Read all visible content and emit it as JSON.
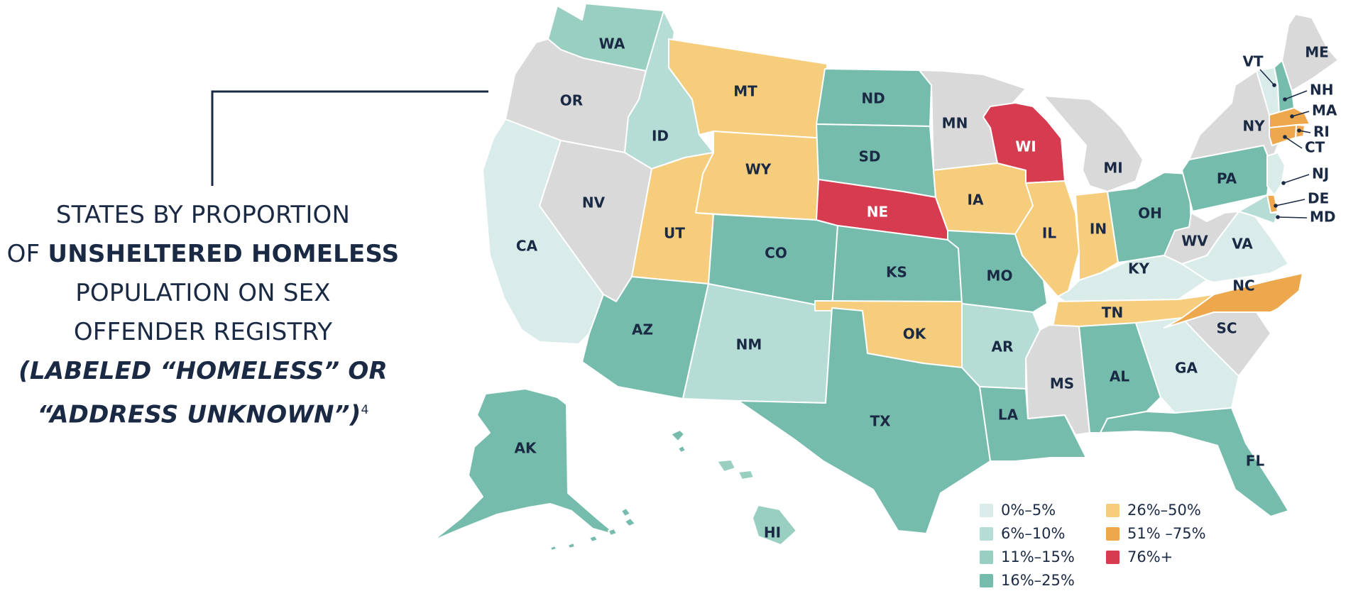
{
  "title": {
    "line1": "STATES BY PROPORTION",
    "line2_prefix": "OF ",
    "line2_bold": "UNSHELTERED HOMELESS",
    "line3": "POPULATION ON SEX",
    "line4": "OFFENDER REGISTRY",
    "line5": "(LABELED “HOMELESS” OR",
    "line6": "“ADDRESS UNKNOWN”)",
    "footnote": "4"
  },
  "colors": {
    "0%–5%": "#d9ecea",
    "6%–10%": "#b6ddd5",
    "11%–15%": "#98cfc1",
    "16%–25%": "#76bcad",
    "26%–50%": "#f6cd7d",
    "51% –75%": "#eda84e",
    "76%+": "#d63b4f",
    "no_data": "#d9d9d9"
  },
  "legend": [
    {
      "label": "0%–5%",
      "color": "#d9ecea"
    },
    {
      "label": "6%–10%",
      "color": "#b6ddd5"
    },
    {
      "label": "11%–15%",
      "color": "#98cfc1"
    },
    {
      "label": "16%–25%",
      "color": "#76bcad"
    },
    {
      "label": "26%–50%",
      "color": "#f6cd7d"
    },
    {
      "label": "51% –75%",
      "color": "#eda84e"
    },
    {
      "label": "76%+",
      "color": "#d63b4f"
    }
  ],
  "states": [
    {
      "abbr": "WA",
      "category": "11%–15%"
    },
    {
      "abbr": "OR",
      "category": "no_data"
    },
    {
      "abbr": "CA",
      "category": "0%–5%"
    },
    {
      "abbr": "NV",
      "category": "no_data"
    },
    {
      "abbr": "ID",
      "category": "6%–10%"
    },
    {
      "abbr": "MT",
      "category": "26%–50%"
    },
    {
      "abbr": "WY",
      "category": "26%–50%"
    },
    {
      "abbr": "UT",
      "category": "26%–50%"
    },
    {
      "abbr": "AZ",
      "category": "16%–25%"
    },
    {
      "abbr": "CO",
      "category": "16%–25%"
    },
    {
      "abbr": "NM",
      "category": "6%–10%"
    },
    {
      "abbr": "ND",
      "category": "16%–25%"
    },
    {
      "abbr": "SD",
      "category": "16%–25%"
    },
    {
      "abbr": "NE",
      "category": "76%+"
    },
    {
      "abbr": "KS",
      "category": "16%–25%"
    },
    {
      "abbr": "OK",
      "category": "26%–50%"
    },
    {
      "abbr": "TX",
      "category": "16%–25%"
    },
    {
      "abbr": "MN",
      "category": "no_data"
    },
    {
      "abbr": "IA",
      "category": "26%–50%"
    },
    {
      "abbr": "MO",
      "category": "16%–25%"
    },
    {
      "abbr": "AR",
      "category": "6%–10%"
    },
    {
      "abbr": "LA",
      "category": "16%–25%"
    },
    {
      "abbr": "WI",
      "category": "76%+"
    },
    {
      "abbr": "IL",
      "category": "26%–50%"
    },
    {
      "abbr": "MI",
      "category": "no_data"
    },
    {
      "abbr": "IN",
      "category": "26%–50%"
    },
    {
      "abbr": "OH",
      "category": "16%–25%"
    },
    {
      "abbr": "KY",
      "category": "0%–5%"
    },
    {
      "abbr": "TN",
      "category": "26%–50%"
    },
    {
      "abbr": "MS",
      "category": "no_data"
    },
    {
      "abbr": "AL",
      "category": "16%–25%"
    },
    {
      "abbr": "GA",
      "category": "0%–5%"
    },
    {
      "abbr": "FL",
      "category": "16%–25%"
    },
    {
      "abbr": "SC",
      "category": "no_data"
    },
    {
      "abbr": "NC",
      "category": "51% –75%"
    },
    {
      "abbr": "VA",
      "category": "0%–5%"
    },
    {
      "abbr": "WV",
      "category": "no_data"
    },
    {
      "abbr": "PA",
      "category": "16%–25%"
    },
    {
      "abbr": "NY",
      "category": "no_data"
    },
    {
      "abbr": "VT",
      "category": "0%–5%"
    },
    {
      "abbr": "NH",
      "category": "16%–25%"
    },
    {
      "abbr": "ME",
      "category": "no_data"
    },
    {
      "abbr": "MA",
      "category": "51% –75%"
    },
    {
      "abbr": "RI",
      "category": "51% –75%"
    },
    {
      "abbr": "CT",
      "category": "51% –75%"
    },
    {
      "abbr": "NJ",
      "category": "0%–5%"
    },
    {
      "abbr": "DE",
      "category": "51% –75%"
    },
    {
      "abbr": "MD",
      "category": "6%–10%"
    },
    {
      "abbr": "AK",
      "category": "16%–25%"
    },
    {
      "abbr": "HI",
      "category": "11%–15%"
    }
  ]
}
